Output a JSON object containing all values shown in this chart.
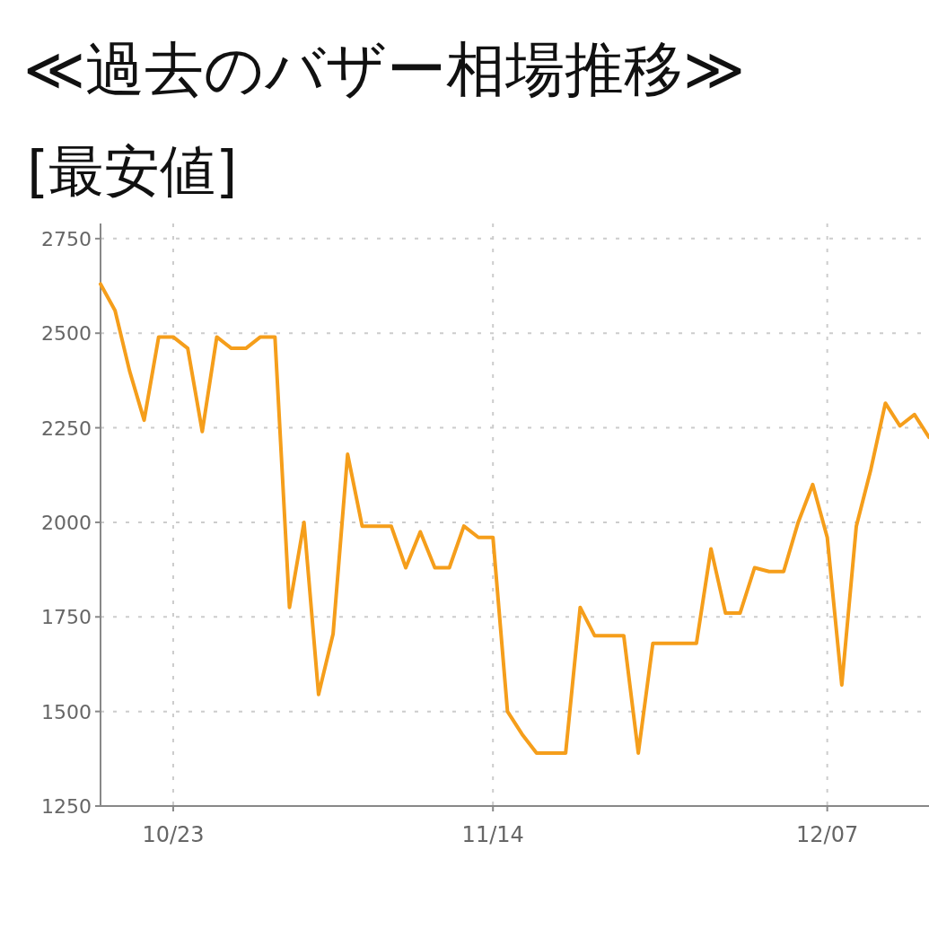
{
  "chart_data": {
    "type": "line",
    "title": "≪過去のバザー相場推移≫",
    "subtitle": "[最安値]",
    "x": [
      "--10-18",
      "--10-19",
      "--10-20",
      "--10-21",
      "--10-22",
      "--10-23",
      "--10-24",
      "--10-25",
      "--10-26",
      "--10-27",
      "--10-28",
      "--10-29",
      "--10-30",
      "--10-31",
      "--11-01",
      "--11-02",
      "--11-03",
      "--11-04",
      "--11-05",
      "--11-06",
      "--11-07",
      "--11-08",
      "--11-09",
      "--11-10",
      "--11-11",
      "--11-12",
      "--11-13",
      "--11-14",
      "--11-15",
      "--11-16",
      "--11-17",
      "--11-18",
      "--11-19",
      "--11-20",
      "--11-21",
      "--11-22",
      "--11-23",
      "--11-24",
      "--11-25",
      "--11-26",
      "--11-27",
      "--11-28",
      "--11-29",
      "--11-30",
      "--12-01",
      "--12-02",
      "--12-03",
      "--12-04",
      "--12-05",
      "--12-06",
      "--12-07",
      "--12-08",
      "--12-09",
      "--12-10",
      "--12-11",
      "--12-12",
      "--12-13",
      "--12-14"
    ],
    "series": [
      {
        "color": "#f59e1b",
        "values": [
          2630,
          2560,
          2400,
          2270,
          2490,
          2490,
          2460,
          2240,
          2490,
          2460,
          2460,
          2490,
          2490,
          1775,
          2000,
          1545,
          1705,
          2180,
          1990,
          1990,
          1990,
          1880,
          1975,
          1880,
          1880,
          1990,
          1960,
          1960,
          1500,
          1440,
          1390,
          1390,
          1390,
          1775,
          1700,
          1700,
          1700,
          1390,
          1680,
          1680,
          1680,
          1680,
          1930,
          1760,
          1760,
          1880,
          1870,
          1870,
          2000,
          2100,
          1960,
          1570,
          1990,
          2140,
          2315,
          2255,
          2285,
          2225
        ]
      }
    ],
    "xlim": [
      "--10-18",
      "--12-14"
    ],
    "xticks": [
      {
        "value": "--10-23",
        "label": "10/23"
      },
      {
        "value": "--11-14",
        "label": "11/14"
      },
      {
        "value": "--12-07",
        "label": "12/07"
      }
    ],
    "ylim": [
      1250,
      2790
    ],
    "yticks": [
      1250,
      1500,
      1750,
      2000,
      2250,
      2500,
      2750
    ],
    "grid": true
  }
}
